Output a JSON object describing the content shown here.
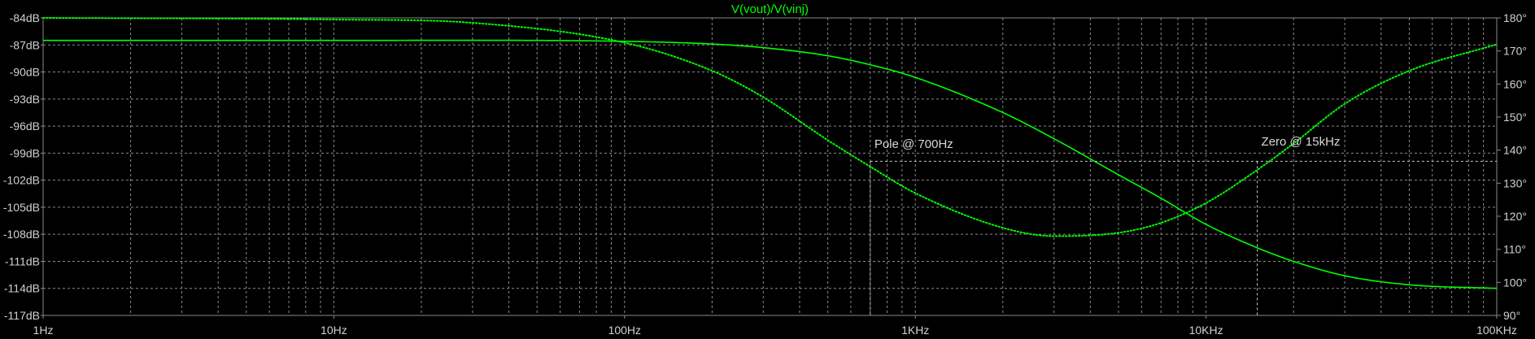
{
  "chart_data": {
    "type": "line",
    "title": "V(vout)/V(vinj)",
    "xlabel": "",
    "x_scale": "log",
    "xlim": [
      1,
      100000
    ],
    "x_ticks": [
      {
        "value": 1,
        "label": "1Hz"
      },
      {
        "value": 10,
        "label": "10Hz"
      },
      {
        "value": 100,
        "label": "100Hz"
      },
      {
        "value": 1000,
        "label": "1KHz"
      },
      {
        "value": 10000,
        "label": "10KHz"
      },
      {
        "value": 100000,
        "label": "100KHz"
      }
    ],
    "ylim_left": [
      -117,
      -84
    ],
    "y_ticks_left": [
      "-84dB",
      "-87dB",
      "-90dB",
      "-93dB",
      "-96dB",
      "-99dB",
      "-102dB",
      "-105dB",
      "-108dB",
      "-111dB",
      "-114dB",
      "-117dB"
    ],
    "ylim_right": [
      90,
      180
    ],
    "y_ticks_right": [
      "180°",
      "170°",
      "160°",
      "150°",
      "140°",
      "130°",
      "120°",
      "110°",
      "100°",
      "90°"
    ],
    "grid": true,
    "colors": {
      "background": "#000000",
      "trace": "#00ff00",
      "grid": "#8a8a8a",
      "text": "#d0d0d0"
    },
    "series": [
      {
        "axis": "left",
        "style": "solid",
        "x": [
          1,
          10,
          100,
          200,
          300,
          500,
          700,
          1000,
          2000,
          3000,
          5000,
          7000,
          10000,
          15000,
          20000,
          30000,
          50000,
          100000
        ],
        "y": [
          -86.5,
          -86.5,
          -86.6,
          -86.9,
          -87.3,
          -88.2,
          -89.2,
          -90.6,
          -94.5,
          -97.4,
          -101.4,
          -104.0,
          -106.9,
          -109.5,
          -111.0,
          -112.6,
          -113.6,
          -114.0
        ]
      },
      {
        "axis": "right",
        "style": "dotted",
        "x": [
          1,
          10,
          30,
          100,
          200,
          300,
          500,
          700,
          1000,
          2000,
          3000,
          5000,
          7000,
          10000,
          15000,
          20000,
          30000,
          50000,
          100000
        ],
        "y": [
          180,
          179.5,
          178.5,
          172.5,
          164,
          156,
          143,
          135,
          127,
          116.5,
          114,
          115,
          118,
          124,
          134,
          142,
          154,
          164,
          172
        ]
      }
    ],
    "annotations": [
      {
        "text": "Pole @ 700Hz",
        "x": 700,
        "y": -99
      },
      {
        "text": "Zero @ 15kHz",
        "x": 15000,
        "y": -99
      }
    ]
  }
}
